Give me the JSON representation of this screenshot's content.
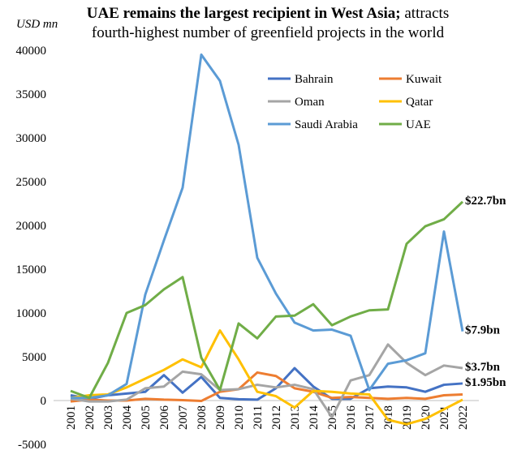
{
  "chart_data": {
    "type": "line",
    "title": [
      "UAE remains the largest recipient in West Asia;",
      "attracts",
      "fourth-highest number of greenfield projects in the world"
    ],
    "y_unit": "USD mn",
    "categories": [
      "2001",
      "2002",
      "2003",
      "2004",
      "2005",
      "2006",
      "2007",
      "2008",
      "2009",
      "2010",
      "2011",
      "2012",
      "2013",
      "2014",
      "2015",
      "2016",
      "2017",
      "2018",
      "2019",
      "2020",
      "2021",
      "2022"
    ],
    "ylim": [
      -5000,
      40000
    ],
    "yticks": [
      -5000,
      0,
      5000,
      10000,
      15000,
      20000,
      25000,
      30000,
      35000,
      40000
    ],
    "grid": false,
    "legend": "top-right",
    "series": [
      {
        "name": "Bahrain",
        "color": "#4472c4",
        "end_label": "$1.95bn",
        "values": [
          600,
          200,
          600,
          800,
          1000,
          2900,
          900,
          2700,
          300,
          150,
          100,
          1400,
          3700,
          1600,
          200,
          200,
          1400,
          1600,
          1500,
          1000,
          1800,
          1950
        ]
      },
      {
        "name": "Kuwait",
        "color": "#ed7d31",
        "values": [
          -100,
          100,
          0,
          0,
          200,
          100,
          50,
          -50,
          1000,
          1300,
          3200,
          2800,
          1400,
          1000,
          300,
          400,
          300,
          200,
          300,
          200,
          600,
          700
        ]
      },
      {
        "name": "Oman",
        "color": "#a5a5a5",
        "end_label": "$3.7bn",
        "values": [
          200,
          -100,
          -100,
          100,
          1400,
          1600,
          3300,
          3000,
          1200,
          1300,
          1800,
          1500,
          1800,
          1300,
          -1900,
          2300,
          2900,
          6400,
          4300,
          2900,
          4000,
          3700
        ]
      },
      {
        "name": "Qatar",
        "color": "#ffc000",
        "values": [
          300,
          600,
          700,
          1500,
          2500,
          3500,
          4700,
          3800,
          8000,
          4700,
          1000,
          500,
          -800,
          1100,
          1000,
          800,
          700,
          -2200,
          -2700,
          -2100,
          -1000,
          100
        ]
      },
      {
        "name": "Saudi Arabia",
        "color": "#5b9bd5",
        "end_label": "$7.9bn",
        "values": [
          300,
          300,
          600,
          1900,
          12100,
          18300,
          24300,
          39500,
          36500,
          29200,
          16300,
          12200,
          8900,
          8000,
          8100,
          7400,
          1200,
          4200,
          4600,
          5400,
          19300,
          7900
        ]
      },
      {
        "name": "UAE",
        "color": "#70ad47",
        "end_label": "$22.7bn",
        "values": [
          1100,
          300,
          4300,
          10000,
          10900,
          12700,
          14100,
          4900,
          1200,
          8800,
          7100,
          9600,
          9700,
          11000,
          8600,
          9600,
          10300,
          10400,
          17900,
          19900,
          20700,
          22700
        ]
      }
    ]
  }
}
